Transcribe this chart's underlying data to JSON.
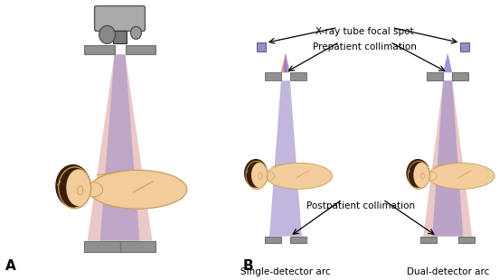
{
  "bg_color": "#ffffff",
  "title_A": "A",
  "title_B": "B",
  "label_single": "Single-detector arc",
  "label_dual": "Dual-detector arc",
  "label_focal": "X-ray tube focal spot",
  "label_prepatient": "Prepatient collimation",
  "label_postpatient": "Postpatient collimation",
  "beam_purple": "#a090c8",
  "beam_pink": "#d89090",
  "skin_color": "#f2cc9a",
  "skin_dark": "#e8b87a",
  "hair_color": "#3a1e08",
  "body_outline": "#c8a060",
  "gray_dark": "#707070",
  "gray_mid": "#909090",
  "gray_light": "#b0b0b0",
  "xray_sq_color": "#9090c0",
  "red_beam": "#d06060",
  "blue_beam": "#6060c0"
}
